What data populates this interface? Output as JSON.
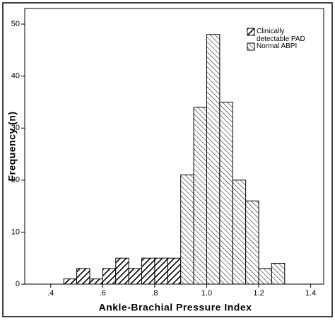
{
  "chart_data": {
    "type": "histogram",
    "x_label": "Ankle-Brachial Pressure Index",
    "y_label": "Frequency (n)",
    "xlim": [
      0.3,
      1.45
    ],
    "ylim": [
      0,
      53
    ],
    "xticks": [
      {
        "value": 0.4,
        "label": ".4"
      },
      {
        "value": 0.6,
        "label": ".6"
      },
      {
        "value": 0.8,
        "label": ".8"
      },
      {
        "value": 1.0,
        "label": "1.0"
      },
      {
        "value": 1.2,
        "label": "1.2"
      },
      {
        "value": 1.4,
        "label": "1.4"
      }
    ],
    "yticks": [
      0,
      10,
      20,
      30,
      40,
      50
    ],
    "legend_position": "upper right",
    "series": [
      {
        "name": "Clinically detectable PAD",
        "color": "#000000",
        "hatch": "dense",
        "bins": [
          0.45,
          0.5,
          0.55,
          0.6,
          0.65,
          0.7,
          0.75,
          0.8,
          0.85,
          0.9
        ],
        "values": [
          1,
          3,
          1,
          3,
          5,
          3,
          5,
          5,
          5
        ]
      },
      {
        "name": "Normal ABPI",
        "color": "#000000",
        "hatch": "sparse",
        "bins": [
          0.9,
          0.95,
          1.0,
          1.05,
          1.1,
          1.15,
          1.2,
          1.25,
          1.3
        ],
        "values": [
          21,
          34,
          48,
          35,
          20,
          16,
          3,
          4
        ]
      }
    ]
  }
}
